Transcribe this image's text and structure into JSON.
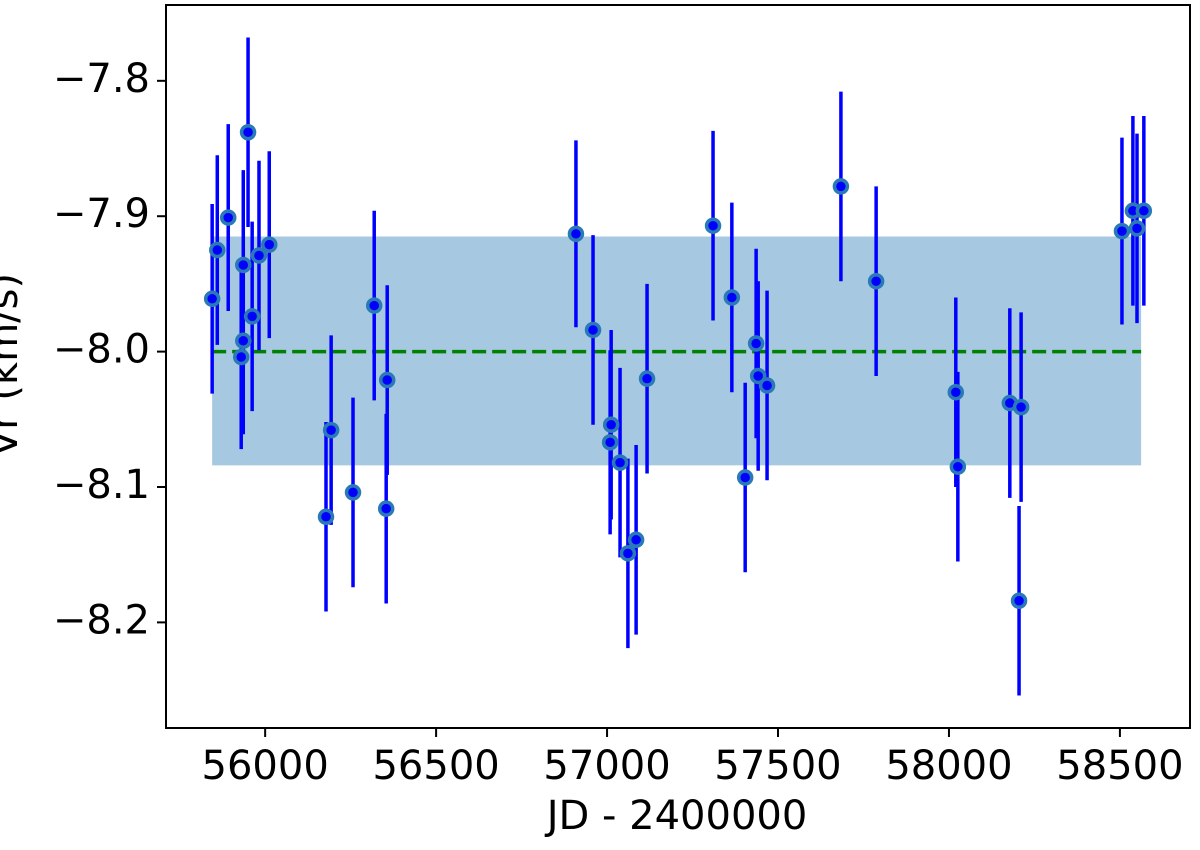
{
  "chart_data": {
    "type": "errorbar",
    "x_label": "JD - 2400000",
    "y_label": "Vr (km/s)",
    "x": [
      55845,
      55860,
      55892,
      55930,
      55936,
      55936,
      55950,
      55962,
      55982,
      56012,
      56178,
      56193,
      56257,
      56319,
      56354,
      56357,
      56909,
      56959,
      57009,
      57012,
      57038,
      57061,
      57085,
      57117,
      57310,
      57365,
      57404,
      57436,
      57442,
      57468,
      57684,
      57787,
      58020,
      58026,
      58178,
      58205,
      58211,
      58506,
      58538,
      58550,
      58570
    ],
    "values": [
      -7.961,
      -7.925,
      -7.901,
      -8.004,
      -7.992,
      -7.936,
      -7.838,
      -7.974,
      -7.929,
      -7.921,
      -8.122,
      -8.058,
      -8.104,
      -7.966,
      -8.116,
      -8.021,
      -7.913,
      -7.984,
      -8.067,
      -8.054,
      -8.082,
      -8.149,
      -8.139,
      -8.02,
      -7.907,
      -7.96,
      -8.093,
      -7.994,
      -8.018,
      -8.025,
      -7.878,
      -7.948,
      -8.03,
      -8.085,
      -8.038,
      -8.184,
      -8.041,
      -7.911,
      -7.896,
      -7.909,
      -7.896
    ],
    "errors": [
      0.07,
      0.07,
      0.069,
      0.068,
      0.069,
      0.07,
      0.07,
      0.07,
      0.07,
      0.069,
      0.07,
      0.07,
      0.07,
      0.07,
      0.07,
      0.07,
      0.069,
      0.07,
      0.068,
      0.07,
      0.07,
      0.07,
      0.07,
      0.07,
      0.07,
      0.07,
      0.07,
      0.07,
      0.07,
      0.07,
      0.07,
      0.07,
      0.07,
      0.07,
      0.07,
      0.07,
      0.07,
      0.069,
      0.07,
      0.07,
      0.07
    ],
    "marker_color": "#0000ff",
    "marker_edge_color": "#2a7ab8",
    "error_color": "#0000ff",
    "mean": -8.0,
    "mean_color": "#008000",
    "band_low": -8.084,
    "band_high": -7.915,
    "band_x": [
      55845,
      58562
    ],
    "band_color": "#a6c8e0",
    "xlim": [
      55710,
      58705
    ],
    "ylim": [
      -8.278,
      -7.744
    ],
    "xticks": [
      56000,
      56500,
      57000,
      57500,
      58000,
      58500
    ],
    "yticks": [
      {
        "value": -7.8,
        "label": "−7.8"
      },
      {
        "value": -7.9,
        "label": "−7.9"
      },
      {
        "value": -8.0,
        "label": "−8.0"
      },
      {
        "value": -8.1,
        "label": "−8.1"
      },
      {
        "value": -8.2,
        "label": "−8.2"
      }
    ]
  }
}
